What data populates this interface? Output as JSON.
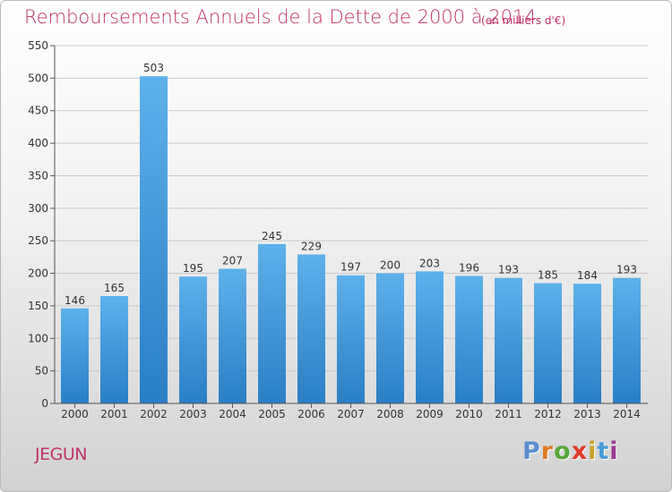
{
  "header": {
    "title": "Remboursements Annuels de la Dette de 2000 à 2014",
    "unit": "(en milliers d'€)"
  },
  "footer": {
    "commune": "JEGUN",
    "logo": "Proxiti"
  },
  "colors": {
    "title": "#c0336a",
    "bar_top": "#5eb1ea",
    "bar_bottom": "#2a7ec4",
    "gridline": "#c8c8c8",
    "logo_letters": [
      "#5a8fcf",
      "#e07a25",
      "#56a83a",
      "#e0392b",
      "#c8a22a",
      "#4a9bd8",
      "#9a3a8f"
    ]
  },
  "chart_data": {
    "type": "bar",
    "categories": [
      "2000",
      "2001",
      "2002",
      "2003",
      "2004",
      "2005",
      "2006",
      "2007",
      "2008",
      "2009",
      "2010",
      "2011",
      "2012",
      "2013",
      "2014"
    ],
    "values": [
      146,
      165,
      503,
      195,
      207,
      245,
      229,
      197,
      200,
      203,
      196,
      193,
      185,
      184,
      193
    ],
    "title": "Remboursements Annuels de la Dette de 2000 à 2014",
    "subtitle": "(en milliers d'€)",
    "xlabel": "",
    "ylabel": "",
    "ylim": [
      0,
      550
    ],
    "yticks": [
      0,
      50,
      100,
      150,
      200,
      250,
      300,
      350,
      400,
      450,
      500,
      550
    ],
    "grid": true,
    "legend": "none"
  }
}
